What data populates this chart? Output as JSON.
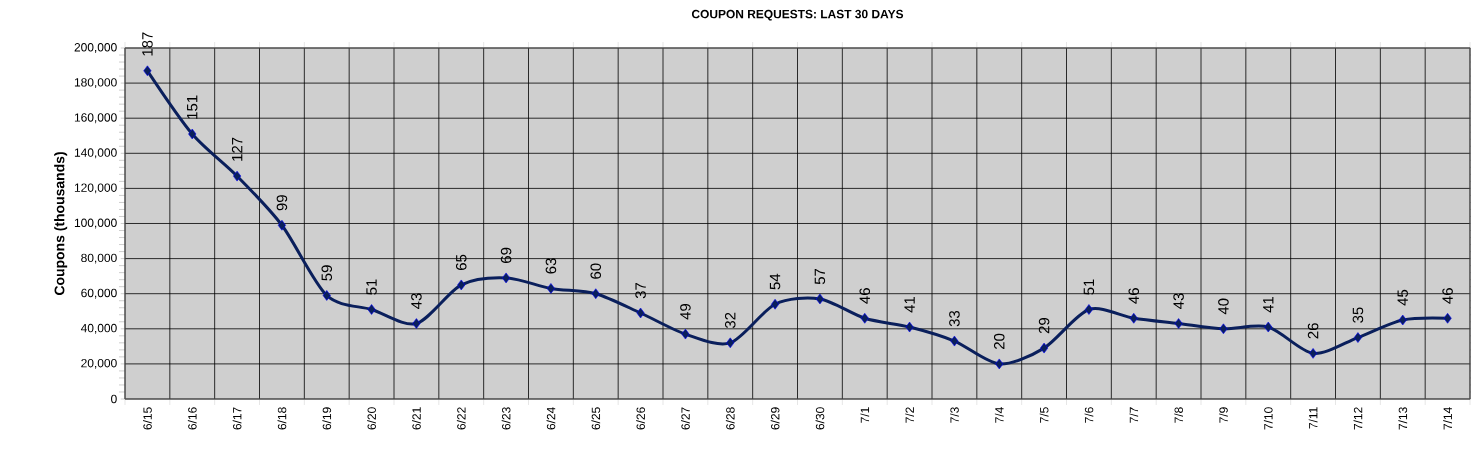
{
  "chart_data": {
    "type": "line",
    "title": "COUPON REQUESTS: LAST 30 DAYS",
    "ylabel": "Coupons (thousands)",
    "categories": [
      "6/15",
      "6/16",
      "6/17",
      "6/18",
      "6/19",
      "6/20",
      "6/21",
      "6/22",
      "6/23",
      "6/24",
      "6/25",
      "6/26",
      "6/27",
      "6/28",
      "6/29",
      "6/30",
      "7/1",
      "7/2",
      "7/3",
      "7/4",
      "7/5",
      "7/6",
      "7/7",
      "7/8",
      "7/9",
      "7/10",
      "7/11",
      "7/12",
      "7/13",
      "7/14"
    ],
    "series": [
      {
        "color": "#0a1f5c",
        "values": [
          187000,
          151000,
          127000,
          99000,
          59000,
          51000,
          43000,
          65000,
          69000,
          63000,
          60000,
          49000,
          37000,
          32000,
          54000,
          57000,
          46000,
          41000,
          33000,
          20000,
          29000,
          51000,
          46000,
          43000,
          40000,
          41000,
          26000,
          35000,
          45000,
          46000
        ]
      }
    ],
    "annotations": [
      {
        "text": "187",
        "x": "6/15",
        "y": 187000
      },
      {
        "text": "151",
        "x": "6/16",
        "y": 151000
      },
      {
        "text": "127",
        "x": "6/17",
        "y": 127000
      },
      {
        "text": "99",
        "x": "6/18",
        "y": 99000
      },
      {
        "text": "59",
        "x": "6/19",
        "y": 59000
      },
      {
        "text": "51",
        "x": "6/20",
        "y": 51000
      },
      {
        "text": "43",
        "x": "6/21",
        "y": 43000
      },
      {
        "text": "65",
        "x": "6/22",
        "y": 65000
      },
      {
        "text": "69",
        "x": "6/23",
        "y": 69000
      },
      {
        "text": "63",
        "x": "6/24",
        "y": 63000
      },
      {
        "text": "60",
        "x": "6/25",
        "y": 60000
      },
      {
        "text": "37",
        "x": "6/26",
        "y": 49000
      },
      {
        "text": "49",
        "x": "6/27",
        "y": 37000
      },
      {
        "text": "32",
        "x": "6/28",
        "y": 32000
      },
      {
        "text": "54",
        "x": "6/29",
        "y": 54000
      },
      {
        "text": "57",
        "x": "6/30",
        "y": 57000
      },
      {
        "text": "46",
        "x": "7/1",
        "y": 46000
      },
      {
        "text": "41",
        "x": "7/2",
        "y": 41000
      },
      {
        "text": "33",
        "x": "7/3",
        "y": 33000
      },
      {
        "text": "20",
        "x": "7/4",
        "y": 20000
      },
      {
        "text": "29",
        "x": "7/5",
        "y": 29000
      },
      {
        "text": "51",
        "x": "7/6",
        "y": 51000
      },
      {
        "text": "46",
        "x": "7/7",
        "y": 46000
      },
      {
        "text": "43",
        "x": "7/8",
        "y": 43000
      },
      {
        "text": "40",
        "x": "7/9",
        "y": 40000
      },
      {
        "text": "41",
        "x": "7/10",
        "y": 41000
      },
      {
        "text": "26",
        "x": "7/11",
        "y": 26000
      },
      {
        "text": "35",
        "x": "7/12",
        "y": 35000
      },
      {
        "text": "45",
        "x": "7/13",
        "y": 45000
      },
      {
        "text": "46",
        "x": "7/14",
        "y": 46000
      }
    ],
    "ylim": [
      0,
      200000
    ],
    "yticks": [
      {
        "value": 0,
        "label": "0"
      },
      {
        "value": 20000,
        "label": "20,000"
      },
      {
        "value": 40000,
        "label": "40,000"
      },
      {
        "value": 60000,
        "label": "60,000"
      },
      {
        "value": 80000,
        "label": "80,000"
      },
      {
        "value": 100000,
        "label": "100,000"
      },
      {
        "value": 120000,
        "label": "120,000"
      },
      {
        "value": 140000,
        "label": "140,000"
      },
      {
        "value": 160000,
        "label": "160,000"
      },
      {
        "value": 180000,
        "label": "180,000"
      },
      {
        "value": 200000,
        "label": "200,000"
      }
    ],
    "grid": true,
    "marker": "diamond",
    "line_style": "solid"
  }
}
